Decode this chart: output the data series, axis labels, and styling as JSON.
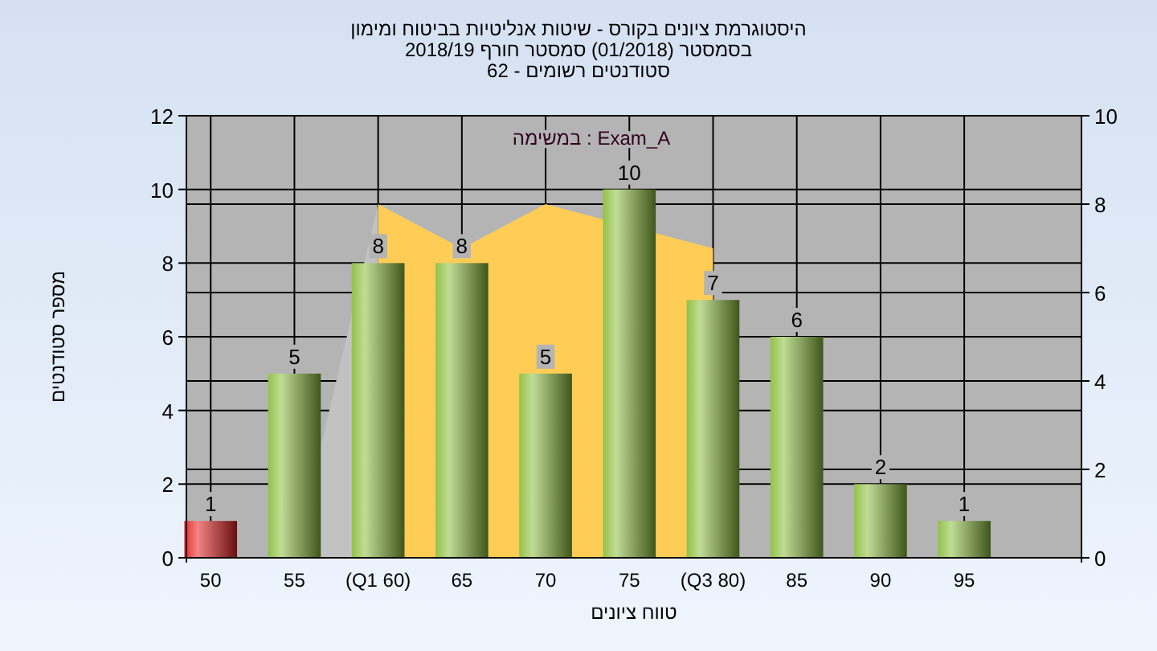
{
  "chart_data": {
    "type": "bar",
    "title": "היסטוגרמת ציונים בקורס - שיטות אנליטיות בביטוח ומימון",
    "subtitle": "בסמסטר  (01/2018)  סמסטר חורף 2018/19\nסטודנטים רשומים - 62",
    "xlabel": "טווח ציונים",
    "ylabel": "מספר סטודנטים",
    "annotations": [
      "במשימה : Exam_A"
    ],
    "categories": [
      "50",
      "55",
      "(Q1 60)",
      "65",
      "70",
      "75",
      "(Q3 80)",
      "85",
      "90",
      "95"
    ],
    "series": [
      {
        "type": "area",
        "axis": "y2",
        "color": "#c2c2c2",
        "values": [
          null,
          0,
          8,
          null,
          null,
          null,
          null,
          null,
          null,
          null
        ]
      },
      {
        "type": "area",
        "axis": "y2",
        "color": "#ffcc55",
        "values": [
          null,
          null,
          8,
          7,
          8,
          null,
          7,
          null,
          null,
          null
        ]
      },
      {
        "value_labels": [
          "1",
          "5",
          "8",
          "8",
          "5",
          "10",
          "7",
          "6",
          "2",
          "1"
        ],
        "colors": [
          "#e82020",
          "#8cbf3f",
          "#8cbf3f",
          "#8cbf3f",
          "#8cbf3f",
          "#8cbf3f",
          "#8cbf3f",
          "#8cbf3f",
          "#8cbf3f",
          "#8cbf3f"
        ],
        "values": [
          1,
          5,
          8,
          8,
          5,
          10,
          7,
          6,
          2,
          1
        ]
      }
    ],
    "ylim": [
      0,
      12
    ],
    "yticks": [
      0,
      2,
      4,
      6,
      8,
      10,
      12
    ],
    "y2lim": [
      0,
      10
    ],
    "y2ticks": [
      0,
      2,
      4,
      6,
      8,
      10
    ],
    "grid": true
  }
}
